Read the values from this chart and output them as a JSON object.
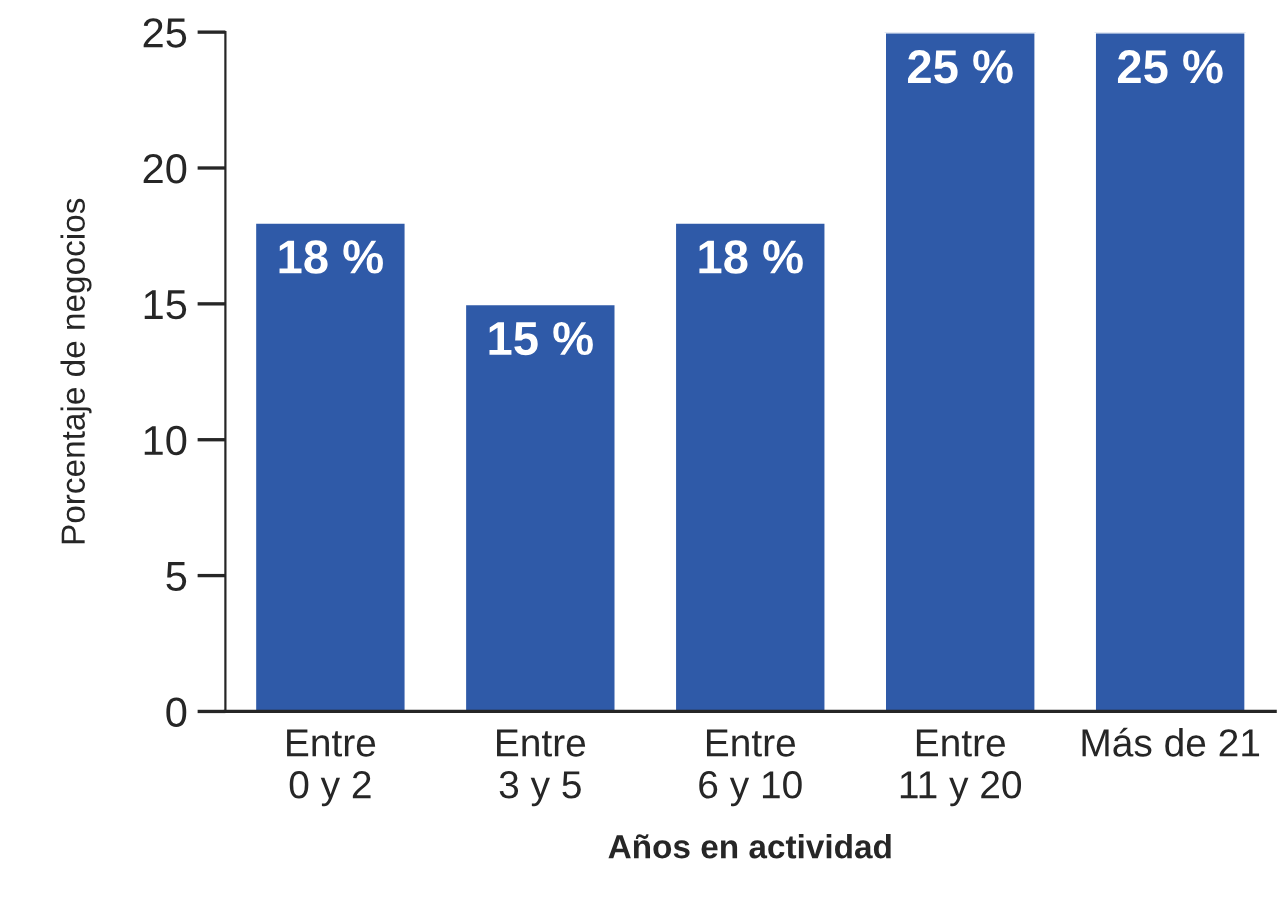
{
  "chart_data": {
    "type": "bar",
    "xlabel": "Años en actividad",
    "ylabel": "Porcentaje de negocios",
    "categories": [
      "Entre\n0 y 2",
      "Entre\n3 y 5",
      "Entre\n6 y 10",
      "Entre\n11 y 20",
      "Más de 21"
    ],
    "values": [
      18,
      15,
      18,
      25,
      25
    ],
    "value_labels": [
      "18 %",
      "15 %",
      "18 %",
      "25 %",
      "25 %"
    ],
    "color": "#2f5aa8",
    "ylim": [
      0,
      25
    ],
    "yticks": [
      0,
      5,
      10,
      15,
      20,
      25
    ],
    "grid": false
  }
}
